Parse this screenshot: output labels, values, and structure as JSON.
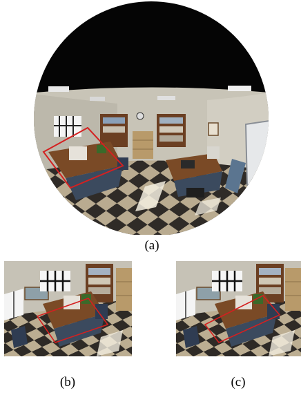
{
  "figure": {
    "panels": [
      {
        "id": "a",
        "caption": "(a)",
        "kind": "fisheye-office-render"
      },
      {
        "id": "b",
        "caption": "(b)",
        "kind": "rectified-office-render"
      },
      {
        "id": "c",
        "caption": "(c)",
        "kind": "rectified-office-render"
      }
    ],
    "colors": {
      "highlight_box": "#d42020",
      "ceiling": "#050505",
      "wall": "#c9c5b8",
      "floor_light": "#b8a98c",
      "floor_dark": "#2e2a26",
      "desk_wood": "#7a4a26",
      "desk_blue": "#3b4a5e",
      "shelf_wood": "#6b3f22"
    }
  }
}
